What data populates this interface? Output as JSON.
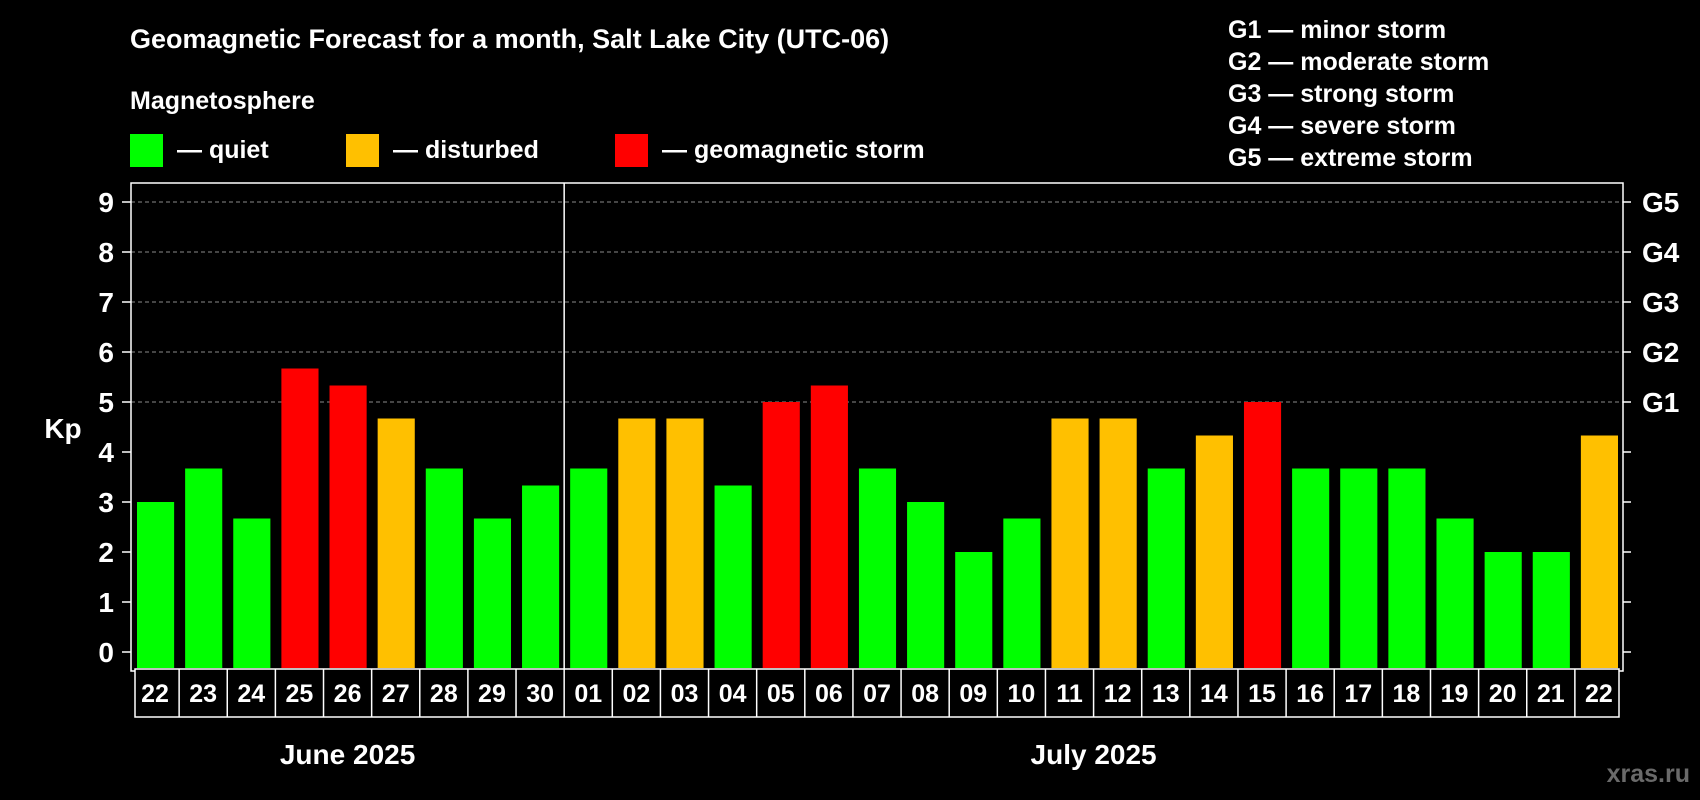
{
  "chart_data": {
    "type": "bar",
    "title": "Geomagnetic Forecast for a month, Salt Lake City (UTC-06)",
    "legend_heading": "Magnetosphere",
    "legend": [
      {
        "label": "— quiet",
        "color": "#00ff00"
      },
      {
        "label": "— disturbed",
        "color": "#ffc000"
      },
      {
        "label": "— geomagnetic storm",
        "color": "#ff0000"
      }
    ],
    "storm_scale": [
      "G1 — minor storm",
      "G2 — moderate storm",
      "G3 — strong storm",
      "G4 — severe storm",
      "G5 — extreme storm"
    ],
    "ylabel": "Kp",
    "ylim": [
      0,
      9
    ],
    "yticks": [
      "0",
      "1",
      "2",
      "3",
      "4",
      "5",
      "6",
      "7",
      "8",
      "9"
    ],
    "right_axis": [
      {
        "label": "G1",
        "kp": 5
      },
      {
        "label": "G2",
        "kp": 6
      },
      {
        "label": "G3",
        "kp": 7
      },
      {
        "label": "G4",
        "kp": 8
      },
      {
        "label": "G5",
        "kp": 9
      }
    ],
    "grid": true,
    "categories": [
      "22",
      "23",
      "24",
      "25",
      "26",
      "27",
      "28",
      "29",
      "30",
      "01",
      "02",
      "03",
      "04",
      "05",
      "06",
      "07",
      "08",
      "09",
      "10",
      "11",
      "12",
      "13",
      "14",
      "15",
      "16",
      "17",
      "18",
      "19",
      "20",
      "21",
      "22"
    ],
    "values": [
      3.0,
      3.67,
      2.67,
      5.67,
      5.33,
      4.67,
      3.67,
      2.67,
      3.33,
      3.67,
      4.67,
      4.67,
      3.33,
      5.0,
      5.33,
      3.67,
      3.0,
      2.0,
      2.67,
      4.67,
      4.67,
      3.67,
      4.33,
      5.0,
      3.67,
      3.67,
      3.67,
      2.67,
      2.0,
      2.0,
      4.33
    ],
    "colors": [
      "#00ff00",
      "#00ff00",
      "#00ff00",
      "#ff0000",
      "#ff0000",
      "#ffc000",
      "#00ff00",
      "#00ff00",
      "#00ff00",
      "#00ff00",
      "#ffc000",
      "#ffc000",
      "#00ff00",
      "#ff0000",
      "#ff0000",
      "#00ff00",
      "#00ff00",
      "#00ff00",
      "#00ff00",
      "#ffc000",
      "#ffc000",
      "#00ff00",
      "#ffc000",
      "#ff0000",
      "#00ff00",
      "#00ff00",
      "#00ff00",
      "#00ff00",
      "#00ff00",
      "#00ff00",
      "#ffc000"
    ],
    "months": [
      {
        "label": "June 2025",
        "start": 0,
        "count": 9
      },
      {
        "label": "July 2025",
        "start": 9,
        "count": 22
      }
    ]
  },
  "watermark": "xras.ru"
}
